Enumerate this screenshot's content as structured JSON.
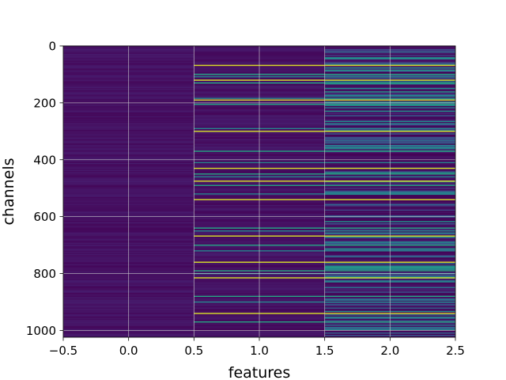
{
  "chart_data": {
    "type": "heatmap",
    "title": "",
    "xlabel": "features",
    "ylabel": "channels",
    "xlim": [
      -0.5,
      2.5
    ],
    "ylim": [
      1024,
      0
    ],
    "x_ticks": [
      "−0.5",
      "0.0",
      "0.5",
      "1.0",
      "1.5",
      "2.0",
      "2.5"
    ],
    "y_ticks": [
      "0",
      "200",
      "400",
      "600",
      "800",
      "1000"
    ],
    "columns": [
      0,
      1,
      2
    ],
    "rows": 1024,
    "colormap": "viridis",
    "grid": true,
    "grid_color": "#d0d0d0",
    "column_0_value": 0.05,
    "column_1_value": 0.05,
    "bright_rows_columns_1_2": [
      68,
      100,
      108,
      120,
      130,
      184,
      190,
      205,
      290,
      300,
      370,
      410,
      430,
      450,
      460,
      475,
      490,
      520,
      540,
      640,
      650,
      668,
      700,
      720,
      760,
      790,
      800,
      815,
      880,
      900,
      940,
      970
    ]
  }
}
